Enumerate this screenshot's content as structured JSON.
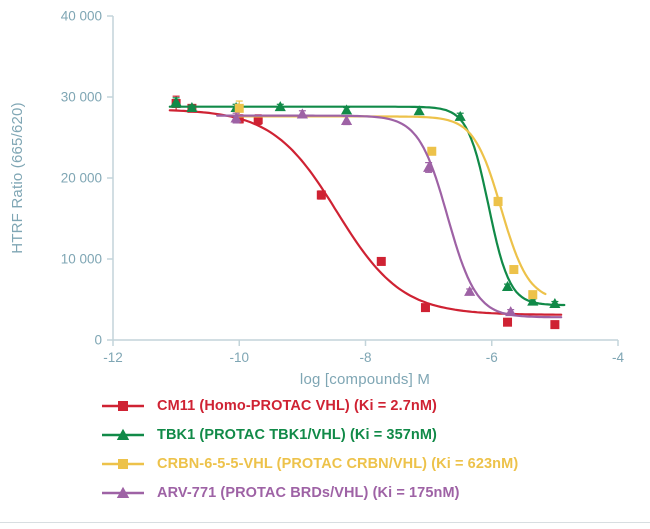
{
  "page": {
    "background": "#ffffff"
  },
  "chart_data": {
    "type": "line",
    "title": "",
    "xlabel": "log [compounds] M",
    "ylabel": "HTRF Ratio (665/620)",
    "xlim": [
      -12,
      -4
    ],
    "ylim": [
      0,
      40000
    ],
    "grid": false,
    "legend_position": "bottom-left",
    "axis_color": "#c3d4da",
    "tick_label_color": "#7fa6b4",
    "x_ticks": {
      "values": [
        -12,
        -10,
        -8,
        -6,
        -4
      ],
      "labels": [
        "-12",
        "-10",
        "-8",
        "-6",
        "-4"
      ]
    },
    "y_ticks": {
      "values": [
        0,
        10000,
        20000,
        30000,
        40000
      ],
      "labels": [
        "0",
        "10 000",
        "20 000",
        "30 000",
        "40 000"
      ]
    },
    "series": [
      {
        "name": "CM11",
        "legend_label": "CM11 (Homo-PROTAC VHL) (Ki = 2.7nM)",
        "ki": "2.7nM",
        "color": "#cf2233",
        "marker": "square",
        "curve": {
          "top": 28500,
          "bottom": 3100,
          "log_ic50": -8.45,
          "hill": 0.85,
          "x_start": -11.1,
          "x_end": -4.9
        },
        "points": [
          [
            -11.0,
            29200,
            900
          ],
          [
            -10.75,
            28600,
            400
          ],
          [
            -10.0,
            27300,
            500
          ],
          [
            -9.7,
            27200,
            600
          ],
          [
            -8.7,
            17900,
            500
          ],
          [
            -7.75,
            9700,
            300
          ],
          [
            -7.05,
            4000,
            300
          ],
          [
            -5.75,
            2200,
            250
          ],
          [
            -5.0,
            1900,
            250
          ]
        ]
      },
      {
        "name": "TBK1",
        "legend_label": "TBK1 (PROTAC TBK1/VHL) (Ki = 357nM)",
        "ki": "357nM",
        "color": "#118a48",
        "marker": "triangle",
        "curve": {
          "top": 28800,
          "bottom": 4300,
          "log_ic50": -6.05,
          "hill": 2.6,
          "x_start": -11.1,
          "x_end": -4.85
        },
        "points": [
          [
            -11.0,
            29400,
            500
          ],
          [
            -10.75,
            28700,
            300
          ],
          [
            -10.05,
            28700,
            400
          ],
          [
            -9.35,
            28800,
            300
          ],
          [
            -8.3,
            28400,
            300
          ],
          [
            -7.15,
            28300,
            400
          ],
          [
            -6.5,
            27600,
            400
          ],
          [
            -5.75,
            6600,
            300
          ],
          [
            -5.35,
            4800,
            250
          ],
          [
            -5.0,
            4500,
            250
          ]
        ]
      },
      {
        "name": "CRBN-6-5-5-VHL",
        "legend_label": "CRBN-6-5-5-VHL (PROTAC CRBN/VHL) (Ki = 623nM)",
        "ki": "623nM",
        "color": "#edc24a",
        "marker": "square",
        "curve": {
          "top": 27600,
          "bottom": 4800,
          "log_ic50": -5.85,
          "hill": 2.0,
          "x_start": -10.05,
          "x_end": -5.15
        },
        "points": [
          [
            -10.0,
            28600,
            900
          ],
          [
            -6.95,
            23300,
            400
          ],
          [
            -5.9,
            17100,
            500
          ],
          [
            -5.65,
            8700,
            400
          ],
          [
            -5.35,
            5600,
            300
          ]
        ]
      },
      {
        "name": "ARV-771",
        "legend_label": "ARV-771 (PROTAC BRDs/VHL) (Ki = 175nM)",
        "ki": "175nM",
        "color": "#9e62a5",
        "marker": "triangle",
        "curve": {
          "top": 27700,
          "bottom": 2800,
          "log_ic50": -6.7,
          "hill": 1.9,
          "x_start": -10.35,
          "x_end": -4.9
        },
        "points": [
          [
            -10.05,
            27400,
            600
          ],
          [
            -9.0,
            27900,
            400
          ],
          [
            -8.3,
            27100,
            500
          ],
          [
            -7.0,
            21300,
            600
          ],
          [
            -6.35,
            6000,
            300
          ],
          [
            -5.7,
            3500,
            250
          ]
        ]
      }
    ]
  }
}
